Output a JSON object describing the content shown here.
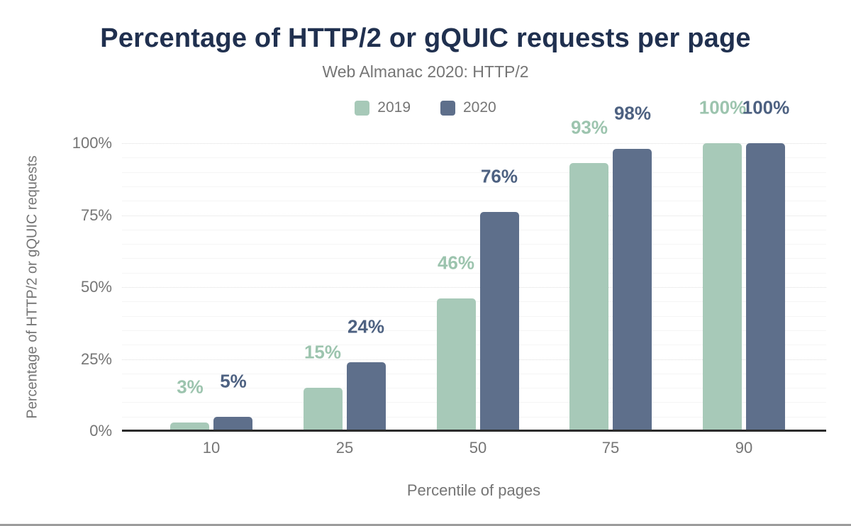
{
  "chart_data": {
    "type": "bar",
    "title": "Percentage of HTTP/2 or gQUIC requests per page",
    "subtitle": "Web Almanac 2020: HTTP/2",
    "xlabel": "Percentile of pages",
    "ylabel": "Percentage of HTTP/2 or gQUIC requests",
    "categories": [
      "10",
      "25",
      "50",
      "75",
      "90"
    ],
    "series": [
      {
        "name": "2019",
        "color": "#a7c9b8",
        "label_color": "#9cc4ae",
        "values": [
          3,
          15,
          46,
          93,
          100
        ],
        "labels": [
          "3%",
          "15%",
          "46%",
          "93%",
          "100%"
        ]
      },
      {
        "name": "2020",
        "color": "#5e6f8b",
        "label_color": "#4d6181",
        "values": [
          5,
          24,
          76,
          98,
          100
        ],
        "labels": [
          "5%",
          "24%",
          "76%",
          "98%",
          "100%"
        ]
      }
    ],
    "ylim": [
      0,
      100
    ],
    "y_ticks": [
      {
        "value": 0,
        "label": "0%"
      },
      {
        "value": 25,
        "label": "25%"
      },
      {
        "value": 50,
        "label": "50%"
      },
      {
        "value": 75,
        "label": "75%"
      },
      {
        "value": 100,
        "label": "100%"
      }
    ],
    "grid": "horizontal, minor every 5%, dotted major every 25%",
    "legend_position": "top"
  },
  "colors": {
    "title_text": "#20304f",
    "muted_text": "#757575",
    "axis_line": "#2b2b2b",
    "grid_minor": "#f5f5f5",
    "grid_major": "#dedede",
    "background": "#ffffff",
    "bottom_border": "#9c9c9c"
  }
}
